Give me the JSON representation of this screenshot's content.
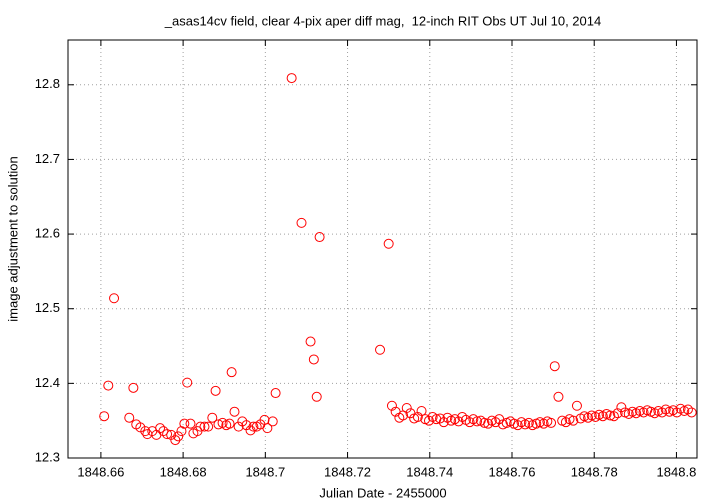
{
  "chart_data": {
    "type": "scatter",
    "title": "_asas14cv field, clear 4-pix aper diff mag,  12-inch RIT Obs UT Jul 10, 2014",
    "x_label": "Julian Date - 2455000",
    "y_label": "image adjustment to solution",
    "color": "#ff0000",
    "grid": true,
    "xlim": [
      1848.652,
      1848.805
    ],
    "ylim": [
      12.3,
      12.86
    ],
    "xticks": [
      1848.66,
      1848.68,
      1848.7,
      1848.72,
      1848.74,
      1848.76,
      1848.78,
      1848.8
    ],
    "yticks": [
      12.3,
      12.4,
      12.5,
      12.6,
      12.7,
      12.8
    ],
    "x": [
      1848.6608,
      1848.6618,
      1848.6632,
      1848.6669,
      1848.6679,
      1848.6686,
      1848.6696,
      1848.6708,
      1848.6713,
      1848.6725,
      1848.6735,
      1848.6744,
      1848.6752,
      1848.6761,
      1848.6771,
      1848.6781,
      1848.6788,
      1848.6796,
      1848.6803,
      1848.681,
      1848.6818,
      1848.6825,
      1848.6835,
      1848.6842,
      1848.6852,
      1848.6861,
      1848.6871,
      1848.6879,
      1848.6886,
      1848.6896,
      1848.6905,
      1848.6913,
      1848.6918,
      1848.6925,
      1848.6935,
      1848.6944,
      1848.6954,
      1848.6964,
      1848.6971,
      1848.6979,
      1848.6988,
      1848.6998,
      1848.7005,
      1848.7018,
      1848.7025,
      1848.7064,
      1848.7088,
      1848.711,
      1848.7118,
      1848.7125,
      1848.7132,
      1848.7279,
      1848.73,
      1848.7308,
      1848.7317,
      1848.7326,
      1848.7335,
      1848.7344,
      1848.7353,
      1848.7362,
      1848.7371,
      1848.738,
      1848.7389,
      1848.7398,
      1848.7407,
      1848.7416,
      1848.7425,
      1848.7434,
      1848.7443,
      1848.7452,
      1848.7461,
      1848.747,
      1848.7479,
      1848.7488,
      1848.7497,
      1848.7506,
      1848.7515,
      1848.7524,
      1848.7533,
      1848.7542,
      1848.7551,
      1848.756,
      1848.7569,
      1848.7578,
      1848.7587,
      1848.7596,
      1848.7605,
      1848.7614,
      1848.7623,
      1848.7632,
      1848.7641,
      1848.765,
      1848.7659,
      1848.7668,
      1848.7677,
      1848.7686,
      1848.7695,
      1848.7704,
      1848.7713,
      1848.7722,
      1848.7731,
      1848.774,
      1848.7749,
      1848.7758,
      1848.7767,
      1848.7776,
      1848.7785,
      1848.7794,
      1848.7803,
      1848.7812,
      1848.7821,
      1848.783,
      1848.7839,
      1848.7848,
      1848.7857,
      1848.7866,
      1848.7875,
      1848.7884,
      1848.7893,
      1848.7902,
      1848.7911,
      1848.792,
      1848.7929,
      1848.7938,
      1848.7947,
      1848.7956,
      1848.7965,
      1848.7974,
      1848.7983,
      1848.7992,
      1848.8001,
      1848.801,
      1848.8019,
      1848.8028,
      1848.8037
    ],
    "values": [
      12.356,
      12.397,
      12.514,
      12.354,
      12.394,
      12.345,
      12.341,
      12.336,
      12.332,
      12.336,
      12.331,
      12.34,
      12.336,
      12.332,
      12.331,
      12.324,
      12.329,
      12.336,
      12.346,
      12.401,
      12.346,
      12.333,
      12.336,
      12.342,
      12.342,
      12.342,
      12.354,
      12.39,
      12.345,
      12.347,
      12.344,
      12.346,
      12.415,
      12.362,
      12.342,
      12.349,
      12.344,
      12.337,
      12.342,
      12.342,
      12.345,
      12.351,
      12.34,
      12.349,
      12.387,
      12.809,
      12.615,
      12.456,
      12.432,
      12.382,
      12.596,
      12.445,
      12.587,
      12.37,
      12.362,
      12.354,
      12.357,
      12.367,
      12.36,
      12.353,
      12.355,
      12.363,
      12.352,
      12.35,
      12.355,
      12.352,
      12.353,
      12.348,
      12.354,
      12.35,
      12.352,
      12.349,
      12.355,
      12.351,
      12.348,
      12.352,
      12.349,
      12.35,
      12.347,
      12.346,
      12.35,
      12.348,
      12.352,
      12.345,
      12.347,
      12.349,
      12.346,
      12.344,
      12.348,
      12.345,
      12.347,
      12.344,
      12.346,
      12.348,
      12.346,
      12.349,
      12.347,
      12.423,
      12.382,
      12.35,
      12.348,
      12.352,
      12.35,
      12.37,
      12.353,
      12.356,
      12.354,
      12.357,
      12.355,
      12.358,
      12.356,
      12.359,
      12.357,
      12.356,
      12.36,
      12.368,
      12.361,
      12.359,
      12.362,
      12.36,
      12.363,
      12.361,
      12.364,
      12.362,
      12.36,
      12.363,
      12.361,
      12.365,
      12.362,
      12.364,
      12.361,
      12.366,
      12.363,
      12.365,
      12.361
    ]
  }
}
